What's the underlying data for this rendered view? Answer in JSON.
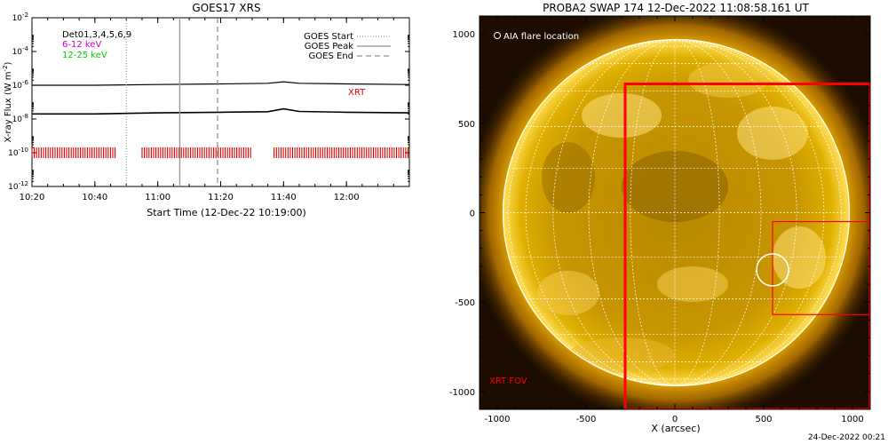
{
  "chart_data": [
    {
      "type": "line",
      "title": "GOES17 XRS",
      "xlabel": "Start Time (12-Dec-22 10:19:00)",
      "ylabel_main": "X-ray Flux (W m",
      "ylabel_sup": "-2",
      "ylabel_close": ")",
      "y_scale": "log",
      "ylim": [
        1e-12,
        0.01
      ],
      "xlim": [
        "10:20",
        "12:20"
      ],
      "x_ticks": [
        "10:20",
        "10:40",
        "11:00",
        "11:20",
        "11:40",
        "12:00"
      ],
      "y_ticks": [
        {
          "base": "10",
          "exp": "-12"
        },
        {
          "base": "10",
          "exp": "-10"
        },
        {
          "base": "10",
          "exp": "-8"
        },
        {
          "base": "10",
          "exp": "-6"
        },
        {
          "base": "10",
          "exp": "-4"
        },
        {
          "base": "10",
          "exp": "-2"
        }
      ],
      "legend_left": {
        "det": "Det01,3,4,5,6,9",
        "band1": "6-12 keV",
        "band2": "12-25 keV",
        "band1_color": "#cc00cc",
        "band2_color": "#00cc00"
      },
      "legend_right": [
        "GOES Start",
        "GOES Peak",
        "GOES End"
      ],
      "xrt_label": "XRT",
      "series": [
        {
          "name": "",
          "color": "#000000",
          "x": [
            "10:20",
            "10:40",
            "11:00",
            "11:20",
            "11:35",
            "11:40",
            "11:45",
            "12:00",
            "12:20"
          ],
          "y": [
            1e-06,
            1e-06,
            1.1e-06,
            1.2e-06,
            1.3e-06,
            1.6e-06,
            1.3e-06,
            1.2e-06,
            1.1e-06
          ]
        },
        {
          "name": "",
          "color": "#000000",
          "x": [
            "10:20",
            "10:40",
            "11:00",
            "11:20",
            "11:35",
            "11:40",
            "11:45",
            "12:00",
            "12:20"
          ],
          "y": [
            2e-08,
            2e-08,
            2.3e-08,
            2.5e-08,
            2.7e-08,
            4e-08,
            2.8e-08,
            2.5e-08,
            2.3e-08
          ]
        }
      ],
      "goes_start": "10:50",
      "goes_peak": "11:07",
      "goes_end": "11:19",
      "xrt_coverage": [
        [
          "10:20",
          "10:47"
        ],
        [
          "10:55",
          "11:30"
        ],
        [
          "11:37",
          "12:20"
        ]
      ],
      "xrt_level": 1e-10,
      "xrt_color": "#dd0000"
    },
    {
      "type": "image",
      "title": "PROBA2 SWAP 174 12-Dec-2022 11:08:58.161 UT",
      "xlabel": "X (arcsec)",
      "xlim": [
        -1100,
        1100
      ],
      "ylim": [
        -1100,
        1100
      ],
      "x_ticks": [
        "-1000",
        "-500",
        "0",
        "500",
        "1000"
      ],
      "y_ticks": [
        "-1000",
        "-500",
        "0",
        "500",
        "1000"
      ],
      "solar_radius_arcsec": 970,
      "legend": "AIA flare location",
      "fov_label": "XRT FOV",
      "fov_color": "#ff0000",
      "xrt_fov": {
        "x": [
          -280,
          1100
        ],
        "y": [
          -1100,
          720
        ]
      },
      "xrt_small_fov": {
        "x": [
          550,
          1100
        ],
        "y": [
          -570,
          -50
        ]
      },
      "flare_location": {
        "x": 550,
        "y": -320,
        "r": 90
      }
    }
  ],
  "footer": {
    "date": "24-Dec-2022 00:21"
  }
}
